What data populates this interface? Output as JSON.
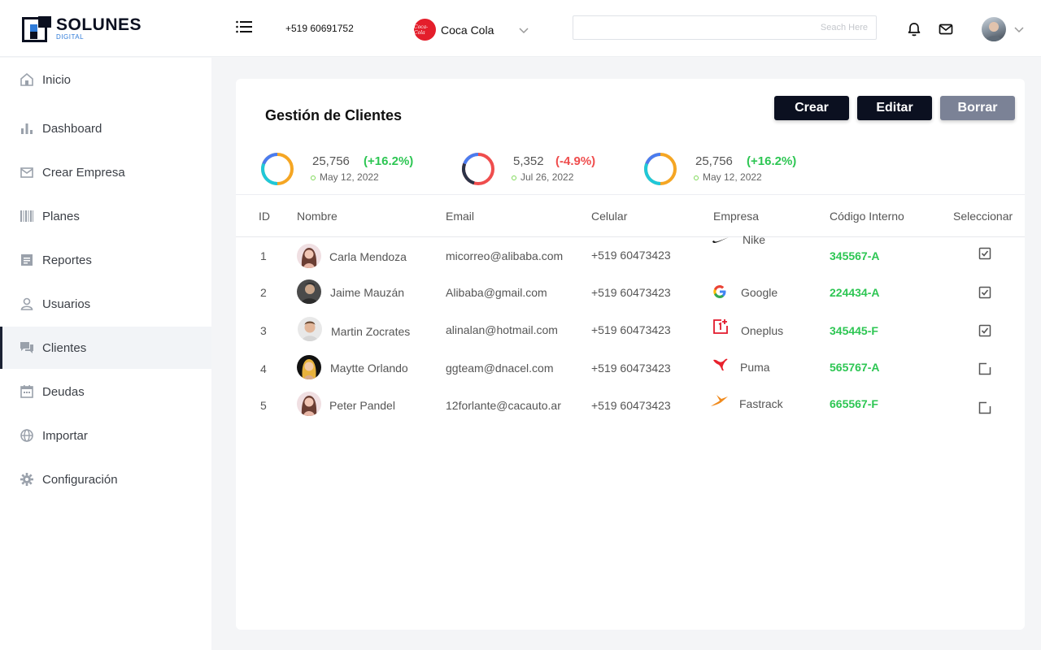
{
  "header": {
    "logo_name": "SOLUNES",
    "logo_sub": "DIGITAL",
    "phone": "+519 60691752",
    "company": {
      "name": "Coca Cola",
      "logo_text": "Coca-Cola",
      "logo_color": "#e41e2b"
    },
    "search_placeholder": "Seach Here",
    "icons": [
      "menu-icon",
      "bell-icon",
      "mail-icon",
      "chevron-down-icon"
    ]
  },
  "sidebar": {
    "items": [
      {
        "label": "Inicio",
        "icon": "home-icon"
      },
      {
        "label": "Dashboard",
        "icon": "bar-chart-icon"
      },
      {
        "label": "Crear Empresa",
        "icon": "envelope-icon"
      },
      {
        "label": "Planes",
        "icon": "barcode-icon"
      },
      {
        "label": "Reportes",
        "icon": "report-icon"
      },
      {
        "label": "Usuarios",
        "icon": "user-icon"
      },
      {
        "label": "Clientes",
        "icon": "chat-icon",
        "active": true
      },
      {
        "label": "Deudas",
        "icon": "calendar-icon"
      },
      {
        "label": "Importar",
        "icon": "globe-icon"
      },
      {
        "label": "Configuración",
        "icon": "gear-icon"
      }
    ]
  },
  "main": {
    "title": "Gestión de Clientes",
    "buttons": {
      "crear": "Crear",
      "editar": "Editar",
      "borrar": "Borrar"
    },
    "stats": [
      {
        "value": "25,756",
        "change": "(+16.2%)",
        "date": "May 12, 2022",
        "trend": "up",
        "color": "#2dc653"
      },
      {
        "value": "5,352",
        "change": "(-4.9%)",
        "date": "Jul 26, 2022",
        "trend": "down",
        "color": "#ef4d4d"
      },
      {
        "value": "25,756",
        "change": "(+16.2%)",
        "date": "May 12, 2022",
        "trend": "up",
        "color": "#2dc653"
      }
    ],
    "table": {
      "columns": [
        "ID",
        "Nombre",
        "Email",
        "Celular",
        "Empresa",
        "Código Interno",
        "Seleccionar"
      ],
      "rows": [
        {
          "id": "1",
          "name": "Carla Mendoza",
          "email": "micorreo@alibaba.com",
          "phone": "+519 60473423",
          "company": "Nike",
          "company_icon": "nike-icon",
          "code": "345567-A",
          "selected": true
        },
        {
          "id": "2",
          "name": "Jaime Mauzán",
          "email": "Alibaba@gmail.com",
          "phone": "+519 60473423",
          "company": "Google",
          "company_icon": "google-icon",
          "code": "224434-A",
          "selected": true
        },
        {
          "id": "3",
          "name": "Martin Zocrates",
          "email": "alinalan@hotmail.com",
          "phone": "+519 60473423",
          "company": "Oneplus",
          "company_icon": "oneplus-icon",
          "code": "345445-F",
          "selected": true
        },
        {
          "id": "4",
          "name": "Maytte Orlando",
          "email": "ggteam@dnacel.com",
          "phone": "+519 60473423",
          "company": "Puma",
          "company_icon": "puma-icon",
          "code": "565767-A",
          "selected": false
        },
        {
          "id": "5",
          "name": "Peter Pandel",
          "email": "12forlante@cacauto.ar",
          "phone": "+519 60473423",
          "company": "Fastrack",
          "company_icon": "fastrack-icon",
          "code": "665567-F",
          "selected": false
        }
      ]
    }
  }
}
